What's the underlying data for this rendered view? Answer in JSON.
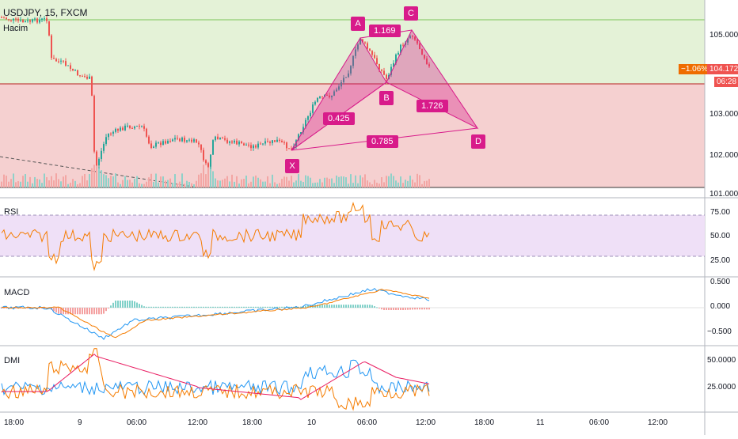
{
  "header": {
    "symbol": "USDJPY, 15, FXCM",
    "volume_label": "Hacim"
  },
  "price_axis": {
    "ticks": [
      "105.000",
      "104.000",
      "103.000",
      "102.000",
      "101.000"
    ],
    "change_tag": "−1.06%",
    "price_tag": "104.172",
    "timer_tag": "06:28"
  },
  "harmonic": {
    "points": [
      "X",
      "A",
      "B",
      "C",
      "D"
    ],
    "ratios": [
      "1.169",
      "0.425",
      "1.726",
      "0.785"
    ]
  },
  "rsi": {
    "label": "RSI",
    "ticks": [
      "75.00",
      "50.00",
      "25.00"
    ]
  },
  "macd": {
    "label": "MACD",
    "ticks": [
      "0.500",
      "0.000",
      "−0.500"
    ]
  },
  "dmi": {
    "label": "DMI",
    "ticks": [
      "50.0000",
      "25.0000"
    ]
  },
  "time_axis": {
    "labels": [
      "18:00",
      "9",
      "06:00",
      "12:00",
      "18:00",
      "10",
      "06:00",
      "12:00",
      "18:00",
      "11",
      "06:00",
      "12:00"
    ]
  },
  "colors": {
    "bull": "#26a69a",
    "bear": "#ef5350",
    "pattern": "#d81b8a",
    "rsi": "#f57c00",
    "macd_line": "#2196f3",
    "signal_line": "#f57c00",
    "adx": "#e91e63"
  },
  "chart_data": {
    "type": "candlestick",
    "price_ylim": [
      101.0,
      105.4
    ],
    "harmonic_pattern_prices": {
      "X": 102.05,
      "A": 104.95,
      "B": 103.75,
      "C": 105.25,
      "D": 102.75
    },
    "last_price": 104.172,
    "rsi_ylim": [
      0,
      100
    ],
    "macd_ylim": [
      -0.7,
      0.6
    ],
    "dmi_ylim": [
      5,
      60
    ]
  }
}
